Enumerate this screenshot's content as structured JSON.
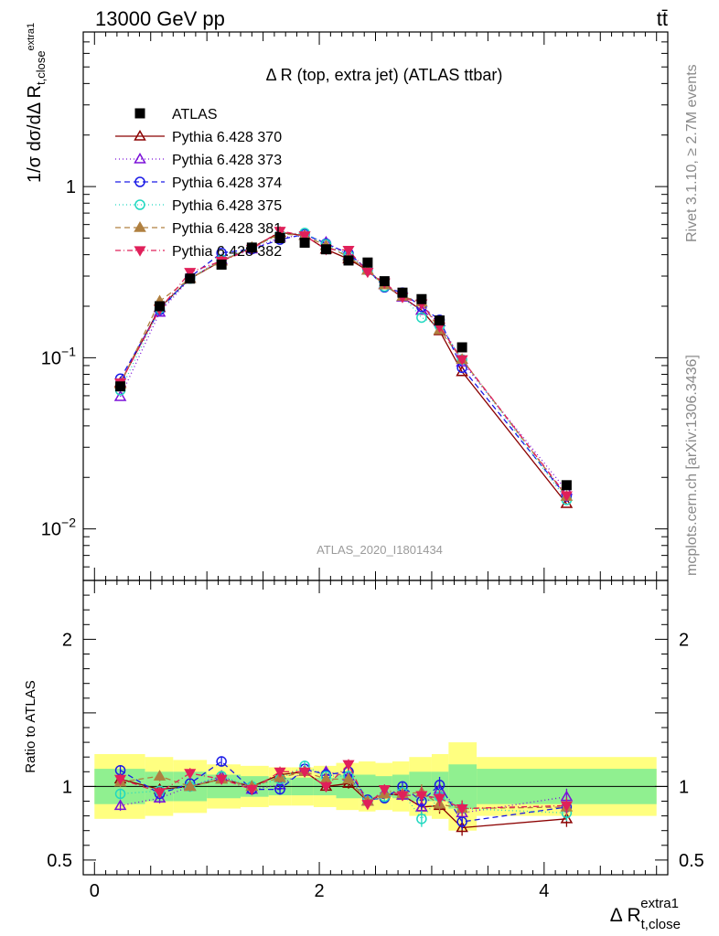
{
  "header": {
    "left": "13000 GeV pp",
    "right": "tt̄"
  },
  "side_labels": {
    "rivet": "Rivet 3.1.10, ≥ 2.7M events",
    "mcplots": "mcplots.cern.ch [arXiv:1306.3436]"
  },
  "chart_data": {
    "type": "scatter",
    "title": "Δ R (top, extra jet) (ATLAS ttbar)",
    "watermark": "ATLAS_2020_I1801434",
    "xlabel": "Δ R",
    "xlabel_sub": "t,close",
    "xlabel_sup": "extra1",
    "ylabel": "dσ/dΔR normalized (1/σ dσ/dΔR)",
    "ratio_ylabel": "Ratio to ATLAS",
    "xlim": [
      -0.1,
      5.1
    ],
    "ylim": [
      0.005,
      8
    ],
    "yscale": "log",
    "ratio_ylim": [
      0.4,
      2.4
    ],
    "xticks": [
      "0",
      "2",
      "4"
    ],
    "yticks": [
      "1",
      "10^-1",
      "10^-2"
    ],
    "ratio_yticks": [
      "0.5",
      "1",
      "2"
    ],
    "legend_position": "top-left",
    "bins": [
      [
        0.0,
        0.45
      ],
      [
        0.45,
        0.7
      ],
      [
        0.7,
        1.0
      ],
      [
        1.0,
        1.3
      ],
      [
        1.3,
        1.55
      ],
      [
        1.55,
        1.75
      ],
      [
        1.75,
        1.95
      ],
      [
        1.95,
        2.15
      ],
      [
        2.15,
        2.35
      ],
      [
        2.35,
        2.5
      ],
      [
        2.5,
        2.65
      ],
      [
        2.65,
        2.8
      ],
      [
        2.8,
        3.0
      ],
      [
        3.0,
        3.15
      ],
      [
        3.15,
        3.4
      ],
      [
        3.4,
        5.0
      ]
    ],
    "x": [
      0.23,
      0.58,
      0.85,
      1.13,
      1.4,
      1.65,
      1.87,
      2.06,
      2.26,
      2.43,
      2.58,
      2.74,
      2.91,
      3.07,
      3.27,
      4.2
    ],
    "band_inner": [
      1.12,
      1.1,
      1.1,
      1.08,
      1.07,
      1.06,
      1.06,
      1.06,
      1.08,
      1.08,
      1.07,
      1.08,
      1.1,
      1.1,
      1.15,
      1.12
    ],
    "band_outer": [
      1.22,
      1.2,
      1.18,
      1.15,
      1.14,
      1.13,
      1.13,
      1.14,
      1.16,
      1.17,
      1.16,
      1.17,
      1.2,
      1.22,
      1.3,
      1.2
    ],
    "series": [
      {
        "name": "ATLAS",
        "color": "#000000",
        "marker": "square",
        "dash": "none",
        "values": [
          0.068,
          0.2,
          0.29,
          0.35,
          0.44,
          0.5,
          0.47,
          0.43,
          0.37,
          0.36,
          0.28,
          0.24,
          0.22,
          0.165,
          0.115,
          0.018
        ]
      },
      {
        "name": "Pythia 6.428 370",
        "color": "#8b0000",
        "marker": "triangle-open",
        "dash": "none",
        "ratio": [
          1.05,
          0.98,
          1.0,
          1.05,
          1.0,
          1.08,
          1.1,
          1.0,
          1.02,
          0.9,
          0.95,
          0.94,
          0.86,
          0.87,
          0.72,
          0.78
        ]
      },
      {
        "name": "Pythia 6.428 373",
        "color": "#7b10d8",
        "marker": "triangle-open",
        "dash": "1,3",
        "ratio": [
          0.87,
          0.92,
          1.0,
          1.07,
          0.98,
          1.01,
          1.1,
          1.1,
          1.07,
          0.9,
          0.96,
          0.94,
          0.86,
          0.98,
          0.82,
          0.93
        ]
      },
      {
        "name": "Pythia 6.428 374",
        "color": "#1a1ae6",
        "marker": "circle-open",
        "dash": "6,4",
        "ratio": [
          1.11,
          0.95,
          1.02,
          1.17,
          0.98,
          0.98,
          1.12,
          1.08,
          1.1,
          0.91,
          0.92,
          1.0,
          0.9,
          1.01,
          0.76,
          0.86
        ]
      },
      {
        "name": "Pythia 6.428 375",
        "color": "#20d8c0",
        "marker": "circle-open",
        "dash": "1,3",
        "ratio": [
          0.95,
          0.97,
          1.0,
          1.07,
          1.0,
          1.05,
          1.14,
          1.07,
          1.07,
          0.9,
          0.93,
          0.96,
          0.78,
          0.93,
          0.85,
          0.82
        ]
      },
      {
        "name": "Pythia 6.428 381",
        "color": "#b08040",
        "marker": "triangle-filled",
        "dash": "6,4",
        "ratio": [
          1.03,
          1.07,
          1.0,
          1.05,
          1.0,
          1.06,
          1.1,
          1.05,
          1.05,
          0.9,
          0.95,
          0.95,
          0.96,
          0.88,
          0.85,
          0.86
        ]
      },
      {
        "name": "Pythia 6.428 382",
        "color": "#e0205a",
        "marker": "triangle-down-filled",
        "dash": "6,3,1,3",
        "ratio": [
          1.05,
          0.96,
          1.09,
          1.05,
          0.98,
          1.1,
          1.1,
          1.0,
          1.15,
          0.88,
          0.98,
          0.94,
          0.94,
          0.92,
          0.85,
          0.87
        ]
      }
    ]
  }
}
